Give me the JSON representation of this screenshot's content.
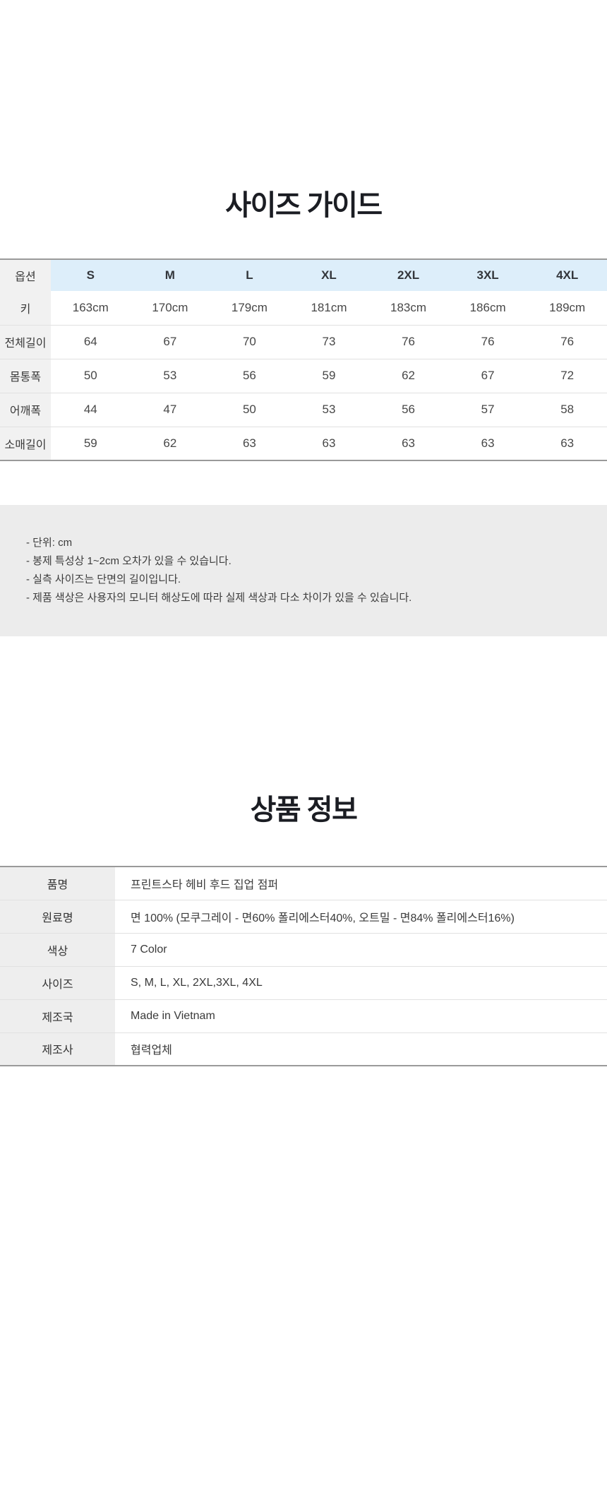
{
  "size_guide": {
    "title": "사이즈 가이드",
    "table": {
      "option_header": "옵션",
      "size_headers": [
        "S",
        "M",
        "L",
        "XL",
        "2XL",
        "3XL",
        "4XL"
      ],
      "rows": [
        {
          "label": "키",
          "values": [
            "163cm",
            "170cm",
            "179cm",
            "181cm",
            "183cm",
            "186cm",
            "189cm"
          ]
        },
        {
          "label": "전체길이",
          "values": [
            "64",
            "67",
            "70",
            "73",
            "76",
            "76",
            "76"
          ]
        },
        {
          "label": "몸통폭",
          "values": [
            "50",
            "53",
            "56",
            "59",
            "62",
            "67",
            "72"
          ]
        },
        {
          "label": "어깨폭",
          "values": [
            "44",
            "47",
            "50",
            "53",
            "56",
            "57",
            "58"
          ]
        },
        {
          "label": "소매길이",
          "values": [
            "59",
            "62",
            "63",
            "63",
            "63",
            "63",
            "63"
          ]
        }
      ]
    },
    "notes": [
      "- 단위: cm",
      "- 봉제 특성상 1~2cm 오차가 있을 수 있습니다.",
      "- 실측 사이즈는 단면의 길이입니다.",
      "- 제품 색상은 사용자의 모니터 해상도에 따라 실제 색상과 다소 차이가 있을 수 있습니다."
    ]
  },
  "product_info": {
    "title": "상품 정보",
    "rows": [
      {
        "label": "품명",
        "value": "프린트스타 헤비 후드 집업 점퍼"
      },
      {
        "label": "원료명",
        "value": "면 100% (모쿠그레이 - 면60% 폴리에스터40%, 오트밀 - 면84% 폴리에스터16%)"
      },
      {
        "label": "색상",
        "value": "7 Color"
      },
      {
        "label": "사이즈",
        "value": "S, M, L, XL, 2XL,3XL, 4XL"
      },
      {
        "label": "제조국",
        "value": "Made in Vietnam"
      },
      {
        "label": "제조사",
        "value": "협력업체"
      }
    ]
  },
  "colors": {
    "size_header_blue": "#ddeefa",
    "label_cell_gray": "#f1f1f1",
    "info_label_gray": "#eeeeee",
    "notes_background": "#ececec",
    "heavy_border": "#9a9a9a",
    "row_divider": "#e1e1e1",
    "title_text": "#1b1d23",
    "body_text": "#3a3a3a"
  }
}
